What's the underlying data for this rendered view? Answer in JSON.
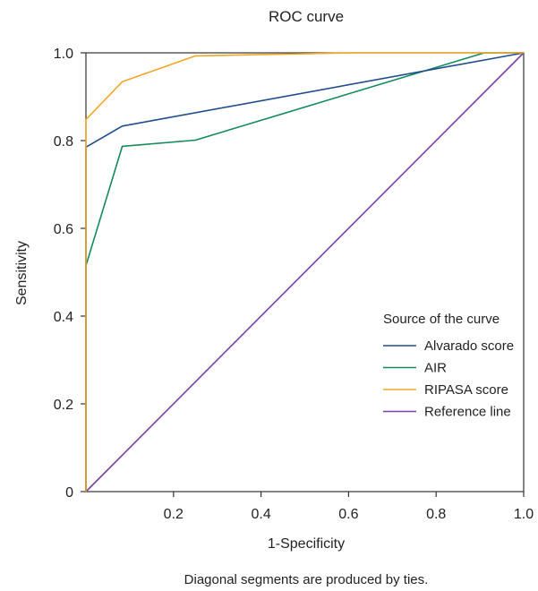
{
  "chart_data": {
    "type": "line",
    "title": "ROC curve",
    "xlabel": "1-Specificity",
    "ylabel": "Sensitivity",
    "xlim": [
      0,
      1
    ],
    "ylim": [
      0,
      1
    ],
    "x_ticks": [
      "0.2",
      "0.4",
      "0.6",
      "0.8",
      "1.0"
    ],
    "x_tick_values": [
      0.2,
      0.4,
      0.6,
      0.8,
      1.0
    ],
    "y_ticks": [
      "0",
      "0.2",
      "0.4",
      "0.6",
      "0.8",
      "1.0"
    ],
    "y_tick_values": [
      0,
      0.2,
      0.4,
      0.6,
      0.8,
      1.0
    ],
    "grid": false,
    "legend_title": "Source of the curve",
    "legend_position": "right",
    "footnote": "Diagonal segments are produced by ties.",
    "series": [
      {
        "name": "Alvarado score",
        "color": "#1f4e8c",
        "points": [
          [
            0,
            0
          ],
          [
            0,
            0.785
          ],
          [
            0.083,
            0.833
          ],
          [
            1.0,
            1.0
          ]
        ]
      },
      {
        "name": "AIR",
        "color": "#128a5a",
        "points": [
          [
            0,
            0
          ],
          [
            0,
            0.515
          ],
          [
            0.083,
            0.787
          ],
          [
            0.25,
            0.801
          ],
          [
            0.91,
            1.0
          ],
          [
            1.0,
            1.0
          ]
        ]
      },
      {
        "name": "RIPASA score",
        "color": "#f2a623",
        "points": [
          [
            0,
            0
          ],
          [
            0,
            0.848
          ],
          [
            0.083,
            0.934
          ],
          [
            0.25,
            0.993
          ],
          [
            0.61,
            1.0
          ],
          [
            1.0,
            1.0
          ]
        ]
      },
      {
        "name": "Reference line",
        "color": "#7b3fa8",
        "points": [
          [
            0,
            0
          ],
          [
            1.0,
            1.0
          ]
        ]
      }
    ]
  }
}
